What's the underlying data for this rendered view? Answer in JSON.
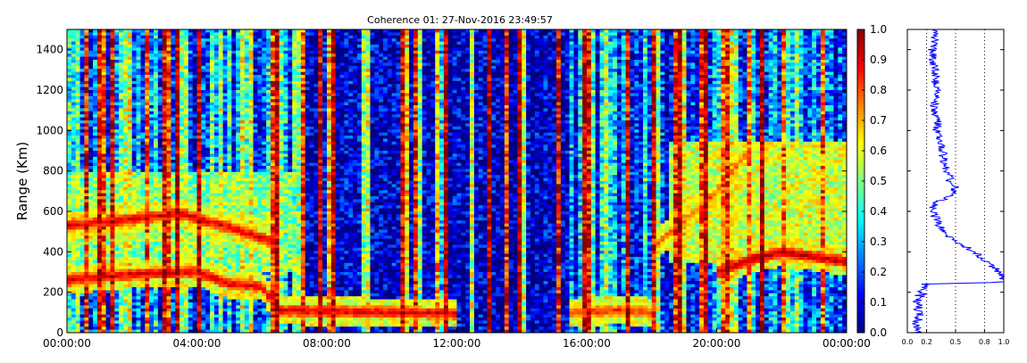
{
  "chart_data": [
    {
      "type": "heatmap",
      "title": "Coherence 01: 27-Nov-2016 23:49:57",
      "ylabel": "Range (Km)",
      "xlabel": "",
      "x_tick_labels": [
        "00:00:00",
        "04:00:00",
        "08:00:00",
        "12:00:00",
        "16:00:00",
        "20:00:00",
        "00:00:00"
      ],
      "x_range_hours": [
        0,
        24
      ],
      "ylim": [
        0,
        1500
      ],
      "y_ticks": [
        0,
        200,
        400,
        600,
        800,
        1000,
        1200,
        1400
      ],
      "colorbar": {
        "colormap": "jet",
        "range": [
          0.0,
          1.0
        ],
        "tick_labels": [
          "0.0",
          "0.1",
          "0.2",
          "0.3",
          "0.4",
          "0.5",
          "0.6",
          "0.7",
          "0.8",
          "0.9",
          "1.0"
        ]
      },
      "features": [
        {
          "name": "lower layer",
          "coherence": 0.92,
          "x_hours": [
            0,
            2,
            4,
            5,
            6,
            6.5,
            10,
            12
          ],
          "y_km": [
            260,
            290,
            300,
            240,
            230,
            110,
            100,
            95
          ]
        },
        {
          "name": "upper layer",
          "coherence": 0.92,
          "x_hours": [
            0,
            2,
            3.5,
            5,
            6.5
          ],
          "y_km": [
            530,
            560,
            590,
            520,
            440
          ]
        },
        {
          "name": "late low layer",
          "coherence": 0.85,
          "x_hours": [
            15.5,
            17,
            18
          ],
          "y_km": [
            100,
            110,
            100
          ]
        },
        {
          "name": "evening layer",
          "coherence": 0.95,
          "x_hours": [
            20,
            21,
            22,
            24
          ],
          "y_km": [
            300,
            360,
            400,
            350
          ]
        },
        {
          "name": "rising streak",
          "coherence": 0.8,
          "x_hours": [
            18,
            19,
            20,
            21
          ],
          "y_km": [
            420,
            550,
            700,
            900
          ]
        }
      ]
    },
    {
      "type": "line",
      "title": "",
      "xlim": [
        0.0,
        1.0
      ],
      "x_tick_labels": [
        "0.0",
        "0.2",
        "0.5",
        "0.8",
        "1.0"
      ],
      "x_ticks": [
        0.0,
        0.2,
        0.5,
        0.8,
        1.0
      ],
      "ylim": [
        0,
        1500
      ],
      "grid_x": [
        0.2,
        0.5,
        0.8
      ],
      "profile": {
        "range_km": [
          0,
          50,
          100,
          150,
          200,
          240,
          250,
          270,
          300,
          330,
          360,
          390,
          420,
          450,
          480,
          520,
          560,
          600,
          640,
          680,
          720,
          750,
          780,
          800,
          850,
          900,
          950,
          1000,
          1050,
          1100,
          1200,
          1300,
          1400,
          1500
        ],
        "coherence": [
          0.12,
          0.1,
          0.12,
          0.1,
          0.15,
          0.2,
          0.98,
          1.0,
          0.95,
          0.88,
          0.8,
          0.72,
          0.62,
          0.5,
          0.42,
          0.35,
          0.3,
          0.26,
          0.28,
          0.48,
          0.5,
          0.42,
          0.46,
          0.4,
          0.38,
          0.36,
          0.34,
          0.3,
          0.32,
          0.28,
          0.3,
          0.28,
          0.26,
          0.3
        ]
      }
    }
  ]
}
